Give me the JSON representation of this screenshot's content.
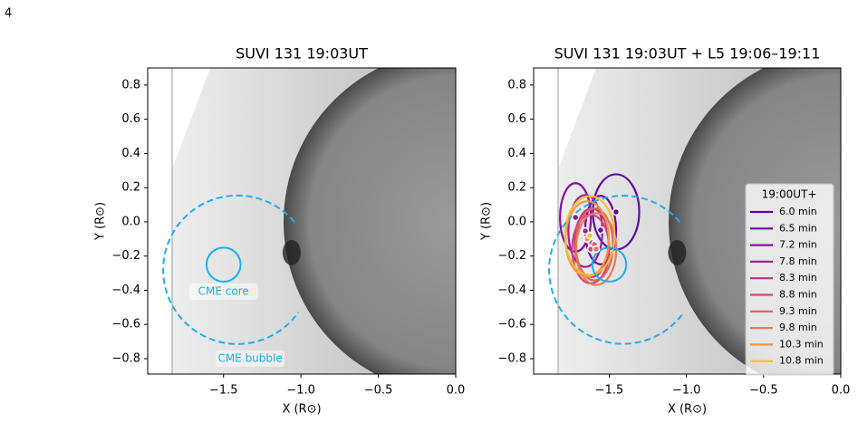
{
  "page_number": "4",
  "chart_data": [
    {
      "type": "image",
      "title": "SUVI 131 19:03UT",
      "xlabel": "X (R⊙)",
      "ylabel": "Y (R⊙)",
      "xlim": [
        -1.99,
        0
      ],
      "ylim": [
        -0.89,
        0.9
      ],
      "xticks": [
        {
          "value": -1.5,
          "label": "−1.5"
        },
        {
          "value": -1.0,
          "label": "−1.0"
        },
        {
          "value": -0.5,
          "label": "−0.5"
        },
        {
          "value": 0,
          "label": "0.0"
        }
      ],
      "yticks": [
        {
          "value": -0.8,
          "label": "−0.8"
        },
        {
          "value": -0.6,
          "label": "−0.6"
        },
        {
          "value": -0.4,
          "label": "−0.4"
        },
        {
          "value": -0.2,
          "label": "−0.2"
        },
        {
          "value": 0,
          "label": "0.0"
        },
        0.2,
        0.4,
        0.6,
        0.8
      ],
      "circles": [
        {
          "label": "CME core",
          "x": -1.5,
          "y": -0.25,
          "r": 0.11,
          "dashed": false,
          "color": "#1ab0f0"
        },
        {
          "label": "CME bubble",
          "x": -1.41,
          "y": -0.28,
          "r": 0.48,
          "dashed": true,
          "color": "#1ab0f0"
        }
      ]
    },
    {
      "type": "image",
      "title": "SUVI 131 19:03UT + L5 19:06–19:11",
      "xlabel": "X (R⊙)",
      "ylabel": "Y (R⊙)",
      "xlim": [
        -1.99,
        0
      ],
      "ylim": [
        -0.89,
        0.9
      ],
      "xticks": [
        {
          "value": -1.5,
          "label": "−1.5"
        },
        {
          "value": -1.0,
          "label": "−1.0"
        },
        {
          "value": -0.5,
          "label": "−0.5"
        },
        {
          "value": 0,
          "label": "0.0"
        }
      ],
      "yticks": [
        {
          "value": -0.8,
          "label": "−0.8"
        },
        {
          "value": -0.6,
          "label": "−0.6"
        },
        {
          "value": -0.4,
          "label": "−0.4"
        },
        {
          "value": -0.2,
          "label": "−0.2"
        },
        {
          "value": 0,
          "label": "0.0"
        },
        0.2,
        0.4,
        0.6,
        0.8
      ],
      "circles": [
        {
          "x": -1.5,
          "y": -0.25,
          "r": 0.11,
          "dashed": false,
          "color": "#1ab0f0"
        },
        {
          "x": -1.41,
          "y": -0.28,
          "r": 0.48,
          "dashed": true,
          "color": "#1ab0f0"
        }
      ],
      "legend_title": "19:00UT+",
      "series": [
        {
          "name": "6.0 min",
          "color": "#5b0aa6",
          "x": -1.456,
          "y": 0.058,
          "rx": 0.15,
          "ry": 0.22
        },
        {
          "name": "6.5 min",
          "color": "#6f02a8",
          "x": -1.556,
          "y": -0.048,
          "rx": 0.1,
          "ry": 0.2
        },
        {
          "name": "7.2 min",
          "color": "#8a0ca4",
          "x": -1.719,
          "y": 0.026,
          "rx": 0.1,
          "ry": 0.2
        },
        {
          "name": "7.8 min",
          "color": "#a22294",
          "x": -1.655,
          "y": -0.053,
          "rx": 0.11,
          "ry": 0.21
        },
        {
          "name": "8.3 min",
          "color": "#b83387",
          "x": -1.614,
          "y": -0.122,
          "rx": 0.11,
          "ry": 0.2
        },
        {
          "name": "8.8 min",
          "color": "#cc4778",
          "x": -1.62,
          "y": -0.159,
          "rx": 0.12,
          "ry": 0.2
        },
        {
          "name": "9.3 min",
          "color": "#de5f65",
          "x": -1.596,
          "y": -0.132,
          "rx": 0.12,
          "ry": 0.21
        },
        {
          "name": "9.8 min",
          "color": "#ed7953",
          "x": -1.585,
          "y": -0.159,
          "rx": 0.13,
          "ry": 0.21
        },
        {
          "name": "10.3 min",
          "color": "#f89540",
          "x": -1.643,
          "y": -0.1,
          "rx": 0.14,
          "ry": 0.22
        },
        {
          "name": "10.8 min",
          "color": "#f3c02b",
          "x": -1.626,
          "y": -0.08,
          "rx": 0.16,
          "ry": 0.23
        }
      ]
    }
  ]
}
